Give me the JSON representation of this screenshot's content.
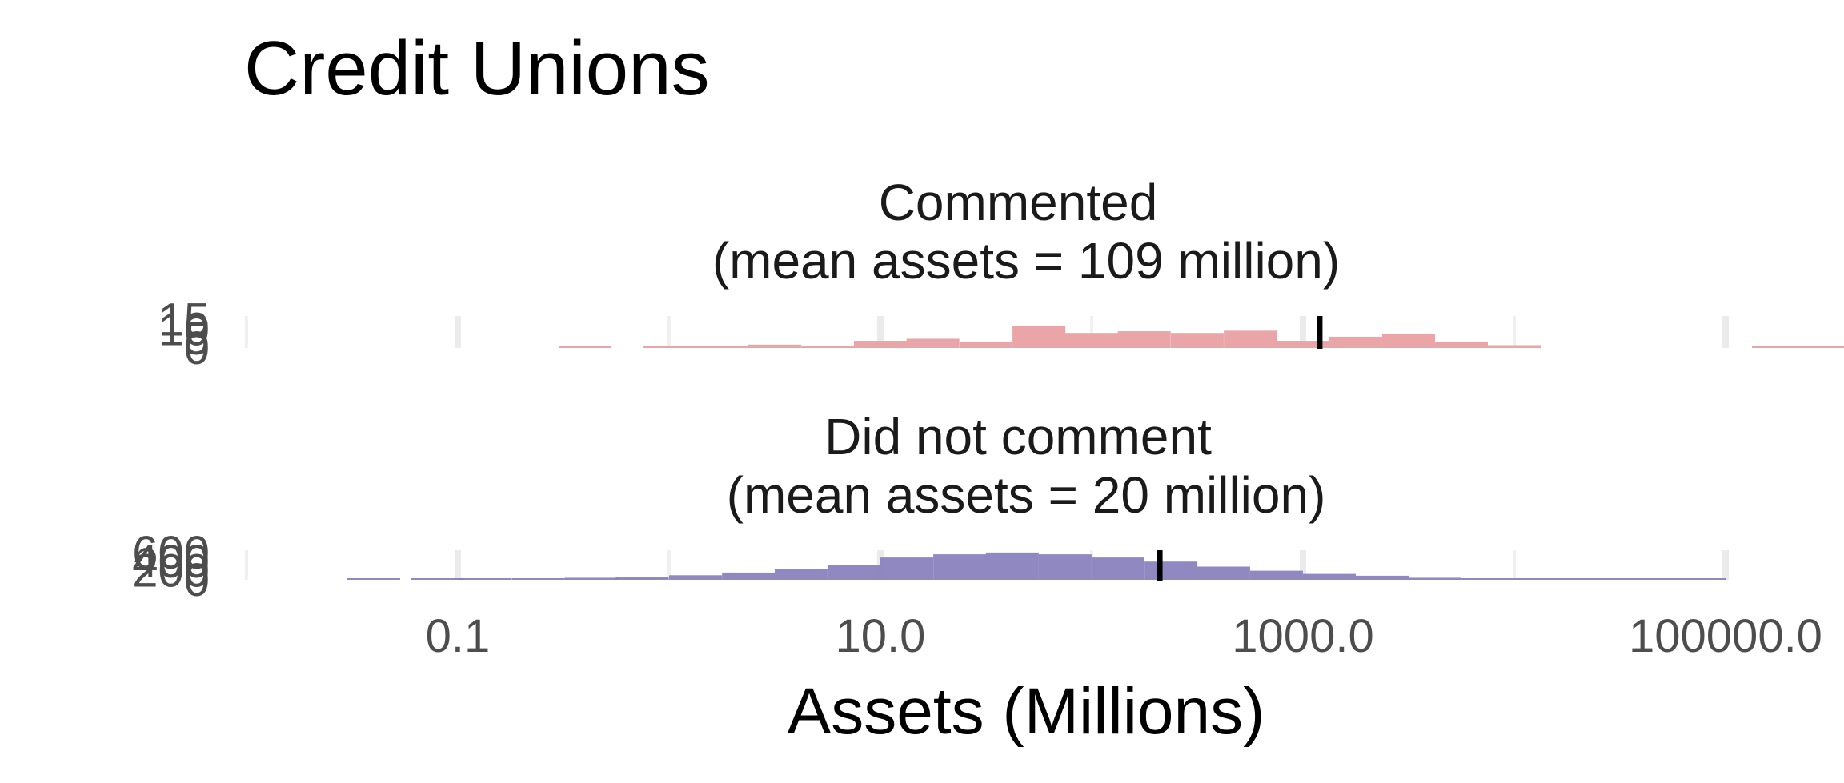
{
  "chart_data": {
    "type": "histogram",
    "title": "Credit Unions",
    "xlabel": "Assets (Millions)",
    "x_scale": "log10",
    "x_range": [
      0.02,
      200000
    ],
    "x_ticks": [
      "0.1",
      "10.0",
      "1000.0",
      "100000.0"
    ],
    "x_tick_values": [
      0.1,
      10,
      1000,
      100000
    ],
    "x_minor_values": [
      0.01,
      1,
      100,
      10000
    ],
    "bin_width_log10": 0.25,
    "grid": true,
    "legend": "none",
    "panels": [
      {
        "label_line1": "Commented",
        "label_line2": "(mean assets = 109 million)",
        "color": "#E8A0A3",
        "y_ticks": [
          "0",
          "5",
          "10",
          "15"
        ],
        "y_tick_values": [
          0,
          5,
          10,
          15
        ],
        "y_max": 17,
        "mean_marker_x": 1200,
        "bins": [
          {
            "x0": 0.3,
            "count": 0.4
          },
          {
            "x0": 0.75,
            "count": 0.4
          },
          {
            "x0": 1.33,
            "count": 0.6
          },
          {
            "x0": 2.37,
            "count": 1.8
          },
          {
            "x0": 4.22,
            "count": 1.1
          },
          {
            "x0": 7.5,
            "count": 3.8
          },
          {
            "x0": 13.3,
            "count": 4.9
          },
          {
            "x0": 23.7,
            "count": 3.0
          },
          {
            "x0": 42.2,
            "count": 11.5
          },
          {
            "x0": 75,
            "count": 8.0
          },
          {
            "x0": 133,
            "count": 8.9
          },
          {
            "x0": 237,
            "count": 8.0
          },
          {
            "x0": 422,
            "count": 9.2
          },
          {
            "x0": 750,
            "count": 3.8
          },
          {
            "x0": 1333,
            "count": 6.0
          },
          {
            "x0": 2371,
            "count": 7.3
          },
          {
            "x0": 4217,
            "count": 3.0
          },
          {
            "x0": 7499,
            "count": 1.5
          },
          {
            "x0": 133352,
            "count": 0.8
          },
          {
            "x0": 237137,
            "count": 0.8
          }
        ]
      },
      {
        "label_line1": "Did not comment",
        "label_line2": "(mean assets = 20 million)",
        "color": "#8A82BE",
        "y_ticks": [
          "0",
          "200",
          "400",
          "600"
        ],
        "y_tick_values": [
          0,
          200,
          400,
          600
        ],
        "y_max": 650,
        "mean_marker_x": 210,
        "bins": [
          {
            "x0": 0.03,
            "count": 5
          },
          {
            "x0": 0.06,
            "count": 8
          },
          {
            "x0": 0.1,
            "count": 15
          },
          {
            "x0": 0.18,
            "count": 25
          },
          {
            "x0": 0.32,
            "count": 45
          },
          {
            "x0": 0.56,
            "count": 70
          },
          {
            "x0": 1.0,
            "count": 100
          },
          {
            "x0": 1.78,
            "count": 160
          },
          {
            "x0": 3.16,
            "count": 230
          },
          {
            "x0": 5.62,
            "count": 330
          },
          {
            "x0": 10,
            "count": 490
          },
          {
            "x0": 17.8,
            "count": 560
          },
          {
            "x0": 31.6,
            "count": 600
          },
          {
            "x0": 56.2,
            "count": 560
          },
          {
            "x0": 100,
            "count": 490
          },
          {
            "x0": 178,
            "count": 400
          },
          {
            "x0": 316,
            "count": 290
          },
          {
            "x0": 562,
            "count": 200
          },
          {
            "x0": 1000,
            "count": 130
          },
          {
            "x0": 1778,
            "count": 90
          },
          {
            "x0": 3162,
            "count": 45
          },
          {
            "x0": 5623,
            "count": 22
          },
          {
            "x0": 10000,
            "count": 12
          },
          {
            "x0": 17783,
            "count": 6
          },
          {
            "x0": 31623,
            "count": 3
          },
          {
            "x0": 56234,
            "count": 2
          }
        ]
      }
    ]
  }
}
